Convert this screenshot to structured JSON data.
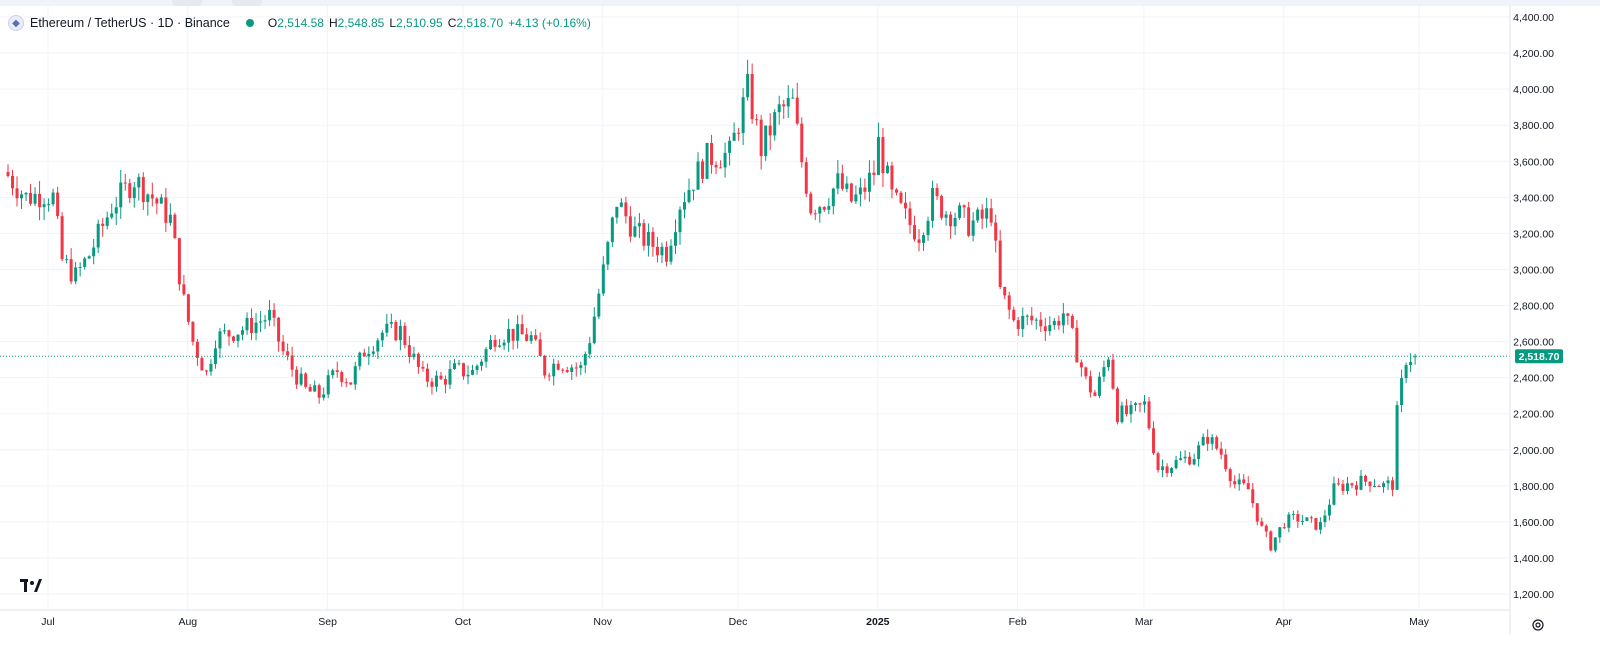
{
  "header": {
    "symbol": "Ethereum / TetherUS · 1D · Binance",
    "open_label": "O",
    "open": "2,514.58",
    "high_label": "H",
    "high": "2,548.85",
    "low_label": "L",
    "low": "2,510.95",
    "close_label": "C",
    "close": "2,518.70",
    "change": "+4.13 (+0.16%)"
  },
  "colors": {
    "up": "#089981",
    "down": "#f23645",
    "grid": "#f0f3fa",
    "axis": "#e0e3eb"
  },
  "chart_data": {
    "type": "candlestick",
    "title": "Ethereum / TetherUS · 1D · Binance",
    "y_axis": {
      "min": 1200,
      "max": 4400,
      "ticks": [
        1200,
        1400,
        1600,
        1800,
        2000,
        2200,
        2400,
        2600,
        2800,
        3000,
        3200,
        3400,
        3600,
        3800,
        4000,
        4200,
        4400
      ],
      "tick_labels": [
        "1,200.00",
        "1,400.00",
        "1,600.00",
        "1,800.00",
        "2,000.00",
        "2,200.00",
        "2,400.00",
        "2,600.00",
        "2,800.00",
        "3,000.00",
        "3,200.00",
        "3,400.00",
        "3,600.00",
        "3,800.00",
        "4,000.00",
        "4,200.00",
        "4,400.00"
      ]
    },
    "x_axis": {
      "labels": [
        "Jul",
        "Aug",
        "Sep",
        "Oct",
        "Nov",
        "Dec",
        "2025",
        "Feb",
        "Mar",
        "Apr",
        "May"
      ],
      "label_day_index": [
        0,
        31,
        62,
        92,
        123,
        153,
        184,
        215,
        243,
        274,
        304
      ],
      "bold_labels": [
        "2025"
      ],
      "start_day": 0
    },
    "last_price": 2518.7,
    "last_price_label": "2,518.70",
    "anchors": [
      [
        0,
        3520
      ],
      [
        4,
        3400
      ],
      [
        8,
        3420
      ],
      [
        10,
        3400
      ],
      [
        12,
        3050
      ],
      [
        15,
        2960
      ],
      [
        18,
        3080
      ],
      [
        23,
        3350
      ],
      [
        28,
        3500
      ],
      [
        32,
        3400
      ],
      [
        36,
        3280
      ],
      [
        39,
        2820
      ],
      [
        41,
        2600
      ],
      [
        44,
        2420
      ],
      [
        46,
        2620
      ],
      [
        52,
        2670
      ],
      [
        58,
        2740
      ],
      [
        61,
        2540
      ],
      [
        63,
        2450
      ],
      [
        66,
        2330
      ],
      [
        69,
        2300
      ],
      [
        73,
        2440
      ],
      [
        76,
        2380
      ],
      [
        79,
        2550
      ],
      [
        83,
        2650
      ],
      [
        87,
        2660
      ],
      [
        90,
        2500
      ],
      [
        92,
        2400
      ],
      [
        96,
        2380
      ],
      [
        99,
        2440
      ],
      [
        103,
        2430
      ],
      [
        108,
        2630
      ],
      [
        111,
        2650
      ],
      [
        116,
        2620
      ],
      [
        119,
        2440
      ],
      [
        122,
        2490
      ],
      [
        127,
        2450
      ],
      [
        129,
        2620
      ],
      [
        132,
        2990
      ],
      [
        135,
        3380
      ],
      [
        139,
        3210
      ],
      [
        142,
        3150
      ],
      [
        146,
        3100
      ],
      [
        149,
        3370
      ],
      [
        152,
        3500
      ],
      [
        155,
        3620
      ],
      [
        160,
        3640
      ],
      [
        164,
        4000
      ],
      [
        167,
        3670
      ],
      [
        171,
        3880
      ],
      [
        174,
        3920
      ],
      [
        176,
        3600
      ],
      [
        178,
        3350
      ],
      [
        181,
        3380
      ],
      [
        184,
        3480
      ],
      [
        187,
        3380
      ],
      [
        189,
        3410
      ],
      [
        192,
        3540
      ],
      [
        193,
        3700
      ],
      [
        196,
        3400
      ],
      [
        200,
        3250
      ],
      [
        202,
        3200
      ],
      [
        205,
        3390
      ],
      [
        208,
        3320
      ],
      [
        211,
        3300
      ],
      [
        213,
        3250
      ],
      [
        216,
        3280
      ],
      [
        218,
        3320
      ],
      [
        220,
        2880
      ],
      [
        223,
        2710
      ],
      [
        226,
        2720
      ],
      [
        232,
        2700
      ],
      [
        234,
        2760
      ],
      [
        236,
        2620
      ],
      [
        239,
        2380
      ],
      [
        241,
        2300
      ],
      [
        244,
        2530
      ],
      [
        246,
        2200
      ],
      [
        249,
        2200
      ],
      [
        252,
        2250
      ],
      [
        255,
        1900
      ],
      [
        258,
        1920
      ],
      [
        263,
        1970
      ],
      [
        266,
        2070
      ],
      [
        269,
        1980
      ],
      [
        272,
        1810
      ],
      [
        275,
        1780
      ],
      [
        278,
        1560
      ],
      [
        280,
        1470
      ],
      [
        283,
        1600
      ],
      [
        286,
        1620
      ],
      [
        289,
        1590
      ],
      [
        291,
        1580
      ],
      [
        294,
        1780
      ],
      [
        297,
        1810
      ],
      [
        302,
        1830
      ],
      [
        305,
        1800
      ],
      [
        307,
        1810
      ],
      [
        308,
        2200
      ],
      [
        309,
        2360
      ],
      [
        310,
        2510
      ],
      [
        311,
        2514
      ],
      [
        312,
        2518.7
      ]
    ]
  }
}
